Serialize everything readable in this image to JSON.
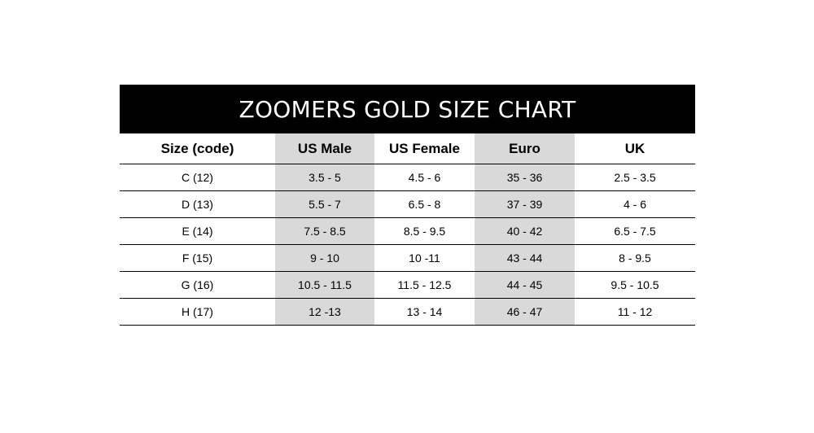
{
  "chart_data": {
    "type": "table",
    "title": "ZOOMERS GOLD SIZE CHART",
    "columns": [
      "Size (code)",
      "US Male",
      "US Female",
      "Euro",
      "UK"
    ],
    "rows": [
      [
        "C (12)",
        "3.5 - 5",
        "4.5 - 6",
        "35 - 36",
        "2.5 - 3.5"
      ],
      [
        "D (13)",
        "5.5 - 7",
        "6.5 - 8",
        "37 - 39",
        "4 - 6"
      ],
      [
        "E (14)",
        "7.5 - 8.5",
        "8.5 - 9.5",
        "40 - 42",
        "6.5 - 7.5"
      ],
      [
        "F (15)",
        "9 - 10",
        "10 -11",
        "43 - 44",
        "8 - 9.5"
      ],
      [
        "G (16)",
        "10.5 - 11.5",
        "11.5 - 12.5",
        "44 - 45",
        "9.5 - 10.5"
      ],
      [
        "H (17)",
        "12 -13",
        "13 - 14",
        "46 - 47",
        "11 - 12"
      ]
    ],
    "shaded_columns": [
      1,
      3
    ],
    "colors": {
      "title_bg": "#000000",
      "title_text": "#ffffff",
      "shade": "#d9d9d9",
      "rule": "#000000"
    }
  }
}
